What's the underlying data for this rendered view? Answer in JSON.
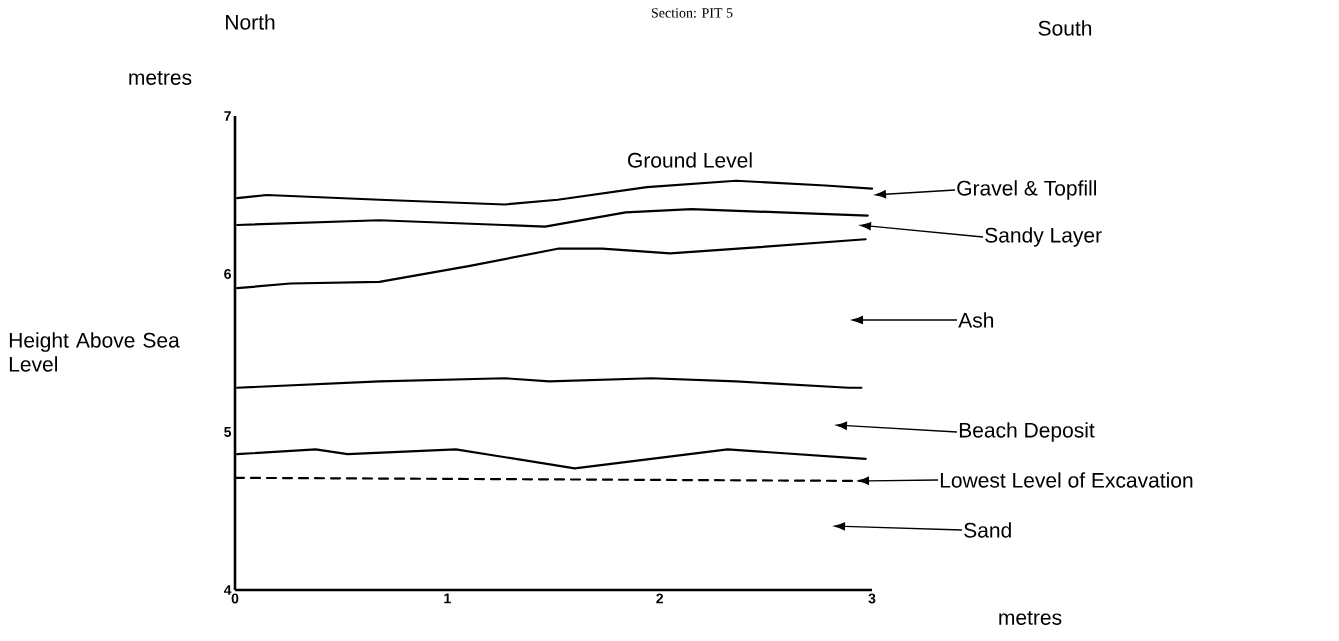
{
  "chart_data": {
    "type": "line",
    "title": "Section: PIT 5",
    "ylabel": "Height Above Sea Level",
    "xlim": [
      0,
      3
    ],
    "ylim": [
      4,
      7
    ],
    "xticks": [
      0,
      1,
      2,
      3
    ],
    "yticks": [
      4,
      5,
      6,
      7
    ],
    "series": [
      {
        "color": "#000000",
        "x": [
          0.01,
          0.15,
          0.68,
          1.27,
          1.52,
          1.94,
          2.36,
          2.78,
          3.0
        ],
        "values": [
          6.48,
          6.5,
          6.47,
          6.44,
          6.47,
          6.55,
          6.59,
          6.56,
          6.54
        ]
      },
      {
        "color": "#000000",
        "x": [
          0.01,
          0.68,
          1.46,
          1.84,
          2.15,
          2.57,
          2.98
        ],
        "values": [
          6.31,
          6.34,
          6.3,
          6.39,
          6.41,
          6.39,
          6.37
        ]
      },
      {
        "color": "#000000",
        "x": [
          0.01,
          0.26,
          0.68,
          1.1,
          1.52,
          1.73,
          2.05,
          2.47,
          2.97
        ],
        "values": [
          5.91,
          5.94,
          5.95,
          6.05,
          6.16,
          6.16,
          6.13,
          6.17,
          6.22
        ]
      },
      {
        "color": "#000000",
        "x": [
          0.01,
          0.68,
          1.27,
          1.48,
          1.96,
          2.36,
          2.89,
          2.95
        ],
        "values": [
          5.28,
          5.32,
          5.34,
          5.32,
          5.34,
          5.32,
          5.28,
          5.28
        ]
      },
      {
        "color": "#000000",
        "x": [
          0.01,
          0.38,
          0.53,
          1.04,
          1.6,
          2.32,
          2.97
        ],
        "values": [
          4.86,
          4.89,
          4.86,
          4.89,
          4.77,
          4.89,
          4.83
        ]
      },
      {
        "color": "#000000",
        "line_style": "dashed",
        "x": [
          0,
          3
        ],
        "values": [
          4.71,
          4.69
        ]
      }
    ],
    "annotations": [
      "North",
      "South",
      "metres",
      "Ground Level",
      "Gravel & Topfill",
      "Sandy Layer",
      "Ash",
      "Beach Deposit",
      "Lowest Level of Excavation",
      "Sand",
      "metres"
    ]
  }
}
